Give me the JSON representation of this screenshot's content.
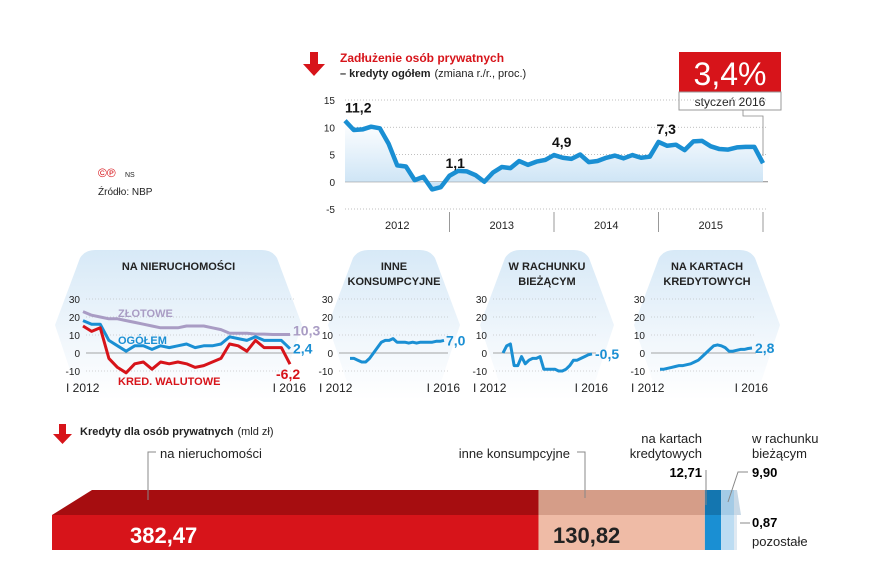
{
  "header": {
    "title_line1": "Zadłużenie osób prywatnych",
    "title_line2": "– kredyty ogółem",
    "title_unit": "(zmiana r./r., proc.)",
    "highlight_value": "3,4%",
    "highlight_date": "styczeń 2016",
    "copyright": "©℗",
    "author": "NS",
    "source": "Źródło: NBP",
    "accent_color": "#d7141a",
    "line_color": "#1a8fd3"
  },
  "chart_data": [
    {
      "type": "line",
      "title": "Zadłużenie osób prywatnych – kredyty ogółem (zmiana r./r., proc.)",
      "ylim": [
        -5,
        15
      ],
      "y_ticks": [
        "15",
        "10",
        "5",
        "0",
        "-5"
      ],
      "x_ticks": [
        "2012",
        "2013",
        "2014",
        "2015"
      ],
      "grid": true,
      "series": [
        {
          "values": [
            11.2,
            9.5,
            9.6,
            10.1,
            9.8,
            7.0,
            3.0,
            2.8,
            0.3,
            0.9,
            -1.4,
            -1.0,
            1.1,
            2.0,
            1.9,
            1.2,
            0.0,
            1.7,
            2.7,
            2.5,
            3.8,
            3.1,
            3.7,
            4.0,
            4.9,
            4.4,
            4.2,
            5.0,
            3.6,
            3.8,
            4.4,
            4.8,
            4.3,
            4.9,
            4.4,
            4.6,
            7.3,
            6.6,
            6.8,
            5.8,
            7.4,
            7.5,
            6.5,
            6.0,
            5.9,
            6.3,
            6.4,
            6.4,
            3.4
          ],
          "color": "#1a8fd3"
        }
      ],
      "annotations": [
        "11,2",
        "1,1",
        "4,9",
        "7,3"
      ]
    },
    {
      "type": "line",
      "title": "NA NIERUCHOMOŚCI",
      "ylim": [
        -10,
        30
      ],
      "y_ticks": [
        "30",
        "20",
        "10",
        "0",
        "-10"
      ],
      "x_ticks": [
        "I 2012",
        "I 2016"
      ],
      "series": [
        {
          "name": "ZŁOTOWE",
          "end_label": "10,3",
          "color": "#a99cc4",
          "values": [
            23,
            21,
            20,
            19,
            19,
            18,
            17,
            16,
            15,
            14,
            14,
            14,
            15,
            15,
            15,
            14,
            13,
            11,
            11,
            11,
            10.5,
            10.5,
            10.3,
            10.3,
            10.3
          ]
        },
        {
          "name": "OGÓŁEM",
          "end_label": "2,4",
          "color": "#1a8fd3",
          "values": [
            18,
            16,
            16,
            7,
            4,
            1,
            4,
            4,
            2,
            4,
            3,
            4,
            5,
            3,
            4,
            4,
            5,
            9,
            8,
            7,
            9,
            7,
            7,
            7,
            2.4
          ]
        },
        {
          "name": "KRED. WALUTOWE",
          "end_label": "-6,2",
          "color": "#d7141a",
          "values": [
            15,
            12,
            14,
            -3,
            -8,
            -11,
            -6,
            -5,
            -9,
            -5,
            -6,
            -5,
            -6,
            -8,
            -7,
            -5,
            -3,
            5,
            4,
            1,
            7,
            3,
            3,
            3,
            -6.2
          ]
        }
      ]
    },
    {
      "type": "line",
      "title": "INNE KONSUMPCYJNE",
      "title_lines": [
        "INNE",
        "KONSUMPCYJNE"
      ],
      "ylim": [
        -10,
        30
      ],
      "y_ticks": [
        "30",
        "20",
        "10",
        "0",
        "-10"
      ],
      "x_ticks": [
        "I 2012",
        "I 2016"
      ],
      "series": [
        {
          "end_label": "7,0",
          "color": "#1a8fd3",
          "values": [
            -3,
            -3,
            -4,
            -5,
            -5,
            -3,
            0,
            3,
            6,
            7,
            7,
            8,
            6,
            6,
            6,
            5.5,
            6,
            5.5,
            6,
            6,
            6,
            6,
            6.5,
            6.5,
            7.0
          ]
        }
      ]
    },
    {
      "type": "line",
      "title": "W RACHUNKU BIEŻĄCYM",
      "title_lines": [
        "W RACHUNKU",
        "BIEŻĄCYM"
      ],
      "ylim": [
        -10,
        30
      ],
      "y_ticks": [
        "30",
        "20",
        "10",
        "0",
        "-10"
      ],
      "x_ticks": [
        "I 2012",
        "I 2016"
      ],
      "series": [
        {
          "end_label": "-0,5",
          "color": "#1a8fd3",
          "values": [
            0,
            4,
            5,
            -7,
            -7,
            -2,
            -6,
            -4,
            -3,
            -3,
            -2,
            -9,
            -9,
            -9,
            -9,
            -10,
            -10,
            -9,
            -7,
            -4,
            -4,
            -3,
            -2,
            -1,
            -0.5
          ]
        }
      ]
    },
    {
      "type": "line",
      "title": "NA KARTACH KREDYTOWYCH",
      "title_lines": [
        "NA KARTACH",
        "KREDYTOWYCH"
      ],
      "ylim": [
        -10,
        30
      ],
      "y_ticks": [
        "30",
        "20",
        "10",
        "0",
        "-10"
      ],
      "x_ticks": [
        "I 2012",
        "I 2016"
      ],
      "series": [
        {
          "end_label": "2,8",
          "color": "#1a8fd3",
          "values": [
            -9,
            -9,
            -8.5,
            -8,
            -7.5,
            -7,
            -7,
            -6.5,
            -6,
            -5,
            -4,
            -2,
            0,
            2,
            4,
            4.5,
            4,
            3,
            1,
            1,
            1.5,
            2,
            2,
            2.5,
            2.8
          ]
        }
      ]
    },
    {
      "type": "bar",
      "title": "Kredyty dla osób prywatnych",
      "title_unit": "(mld zł)",
      "stacked": true,
      "categories": [
        "na nieruchomości",
        "inne konsumpcyjne",
        "na kartach kredytowych",
        "w rachunku bieżącym",
        "pozostałe"
      ],
      "values": [
        382.47,
        130.82,
        12.71,
        9.9,
        0.87
      ],
      "value_labels": [
        "382,47",
        "130,82",
        "12,71",
        "9,90",
        "0,87"
      ],
      "colors": [
        "#d7141a",
        "#efbba6",
        "#1a8fd3",
        "#bcdcf2",
        "#dfe9f2"
      ]
    }
  ]
}
